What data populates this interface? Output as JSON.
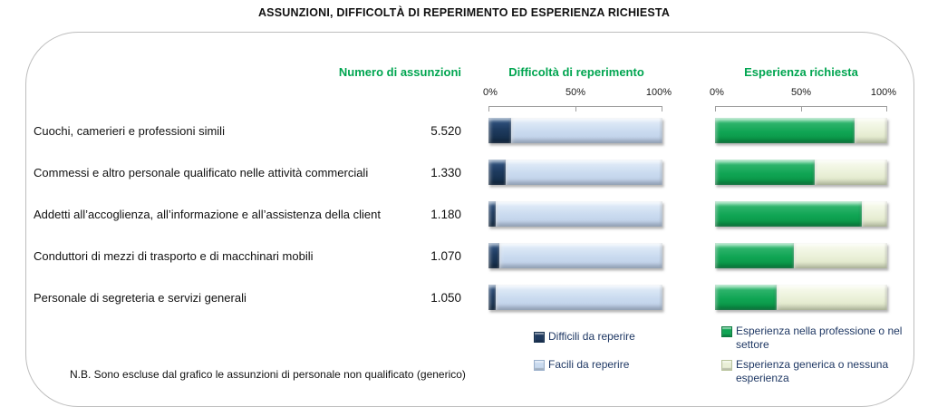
{
  "title": "ASSUNZIONI, DIFFICOLTÀ DI REPERIMENTO ED ESPERIENZA RICHIESTA",
  "columns": {
    "hires": "Numero di assunzioni",
    "difficulty": "Difficoltà di reperimento",
    "experience": "Esperienza richiesta"
  },
  "axis": {
    "t0": "0%",
    "t50": "50%",
    "t100": "100%"
  },
  "rows": [
    {
      "label": "Cuochi, camerieri e professioni simili",
      "hires": "5.520",
      "difficult_pct": 13,
      "experience_pct": 81
    },
    {
      "label": "Commessi e altro personale qualificato nelle attività commerciali",
      "hires": "1.330",
      "difficult_pct": 10,
      "experience_pct": 58
    },
    {
      "label": "Addetti all’accoglienza, all’informazione e all’assistenza della client",
      "hires": "1.180",
      "difficult_pct": 4,
      "experience_pct": 85
    },
    {
      "label": "Conduttori di mezzi di trasporto e di macchinari mobili",
      "hires": "1.070",
      "difficult_pct": 6,
      "experience_pct": 46
    },
    {
      "label": "Personale di segreteria e servizi generali",
      "hires": "1.050",
      "difficult_pct": 4,
      "experience_pct": 36
    }
  ],
  "legend": {
    "difficult": "Difficili da reperire",
    "easy": "Facili da reperire",
    "exp_specific": "Esperienza nella professione o nel settore",
    "exp_generic": "Esperienza generica o nessuna esperienza"
  },
  "note": "N.B. Sono escluse dal grafico le assunzioni di personale non qualificato (generico)",
  "colors": {
    "header_green": "#00A550",
    "bar_navy": "#1F3A5F",
    "bar_lightblue": "#C9DAEF",
    "bar_green": "#10A554",
    "bar_cream": "#E9EFD6",
    "legend_text": "#1F3864",
    "frame_border": "#BDBDBD"
  },
  "chart_data": {
    "type": "bar",
    "orientation": "horizontal",
    "title": "ASSUNZIONI, DIFFICOLTÀ DI REPERIMENTO ED ESPERIENZA RICHIESTA",
    "categories": [
      "Cuochi, camerieri e professioni simili",
      "Commessi e altro personale qualificato nelle attività commerciali",
      "Addetti all’accoglienza, all’informazione e all’assistenza della client",
      "Conduttori di mezzi di trasporto e di macchinari mobili",
      "Personale di segreteria e servizi generali"
    ],
    "hires_values": [
      5520,
      1330,
      1180,
      1070,
      1050
    ],
    "hires_labels": [
      "5.520",
      "1.330",
      "1.180",
      "1.070",
      "1.050"
    ],
    "panels": [
      {
        "title": "Difficoltà di reperimento",
        "stacked": true,
        "xlim": [
          0,
          100
        ],
        "ticks": [
          "0%",
          "50%",
          "100%"
        ],
        "series": [
          {
            "name": "Difficili da reperire",
            "values_pct": [
              13,
              10,
              4,
              6,
              4
            ]
          },
          {
            "name": "Facili da reperire",
            "values_pct": [
              87,
              90,
              96,
              94,
              96
            ]
          }
        ]
      },
      {
        "title": "Esperienza richiesta",
        "stacked": true,
        "xlim": [
          0,
          100
        ],
        "ticks": [
          "0%",
          "50%",
          "100%"
        ],
        "series": [
          {
            "name": "Esperienza nella professione o nel settore",
            "values_pct": [
              81,
              58,
              85,
              46,
              36
            ]
          },
          {
            "name": "Esperienza generica o nessuna esperienza",
            "values_pct": [
              19,
              42,
              15,
              54,
              64
            ]
          }
        ]
      }
    ],
    "note": "N.B. Sono escluse dal grafico le assunzioni di personale non qualificato (generico)",
    "legend_position": "bottom"
  }
}
